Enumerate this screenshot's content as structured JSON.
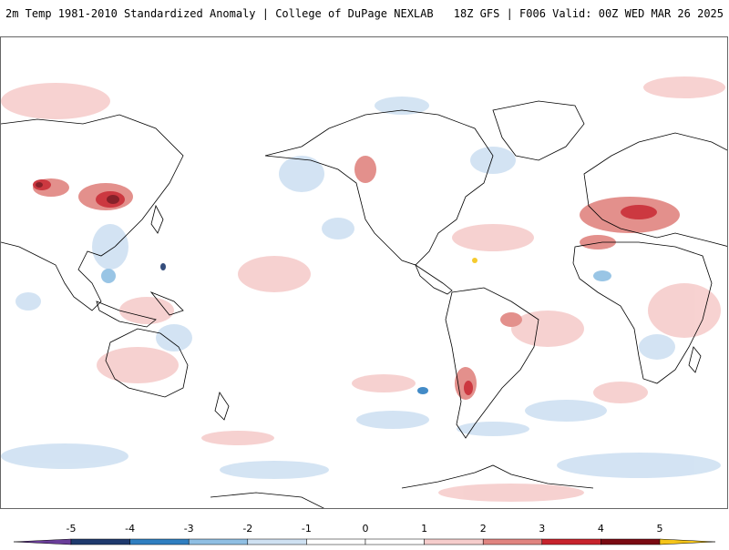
{
  "header": {
    "left_title": "2m Temp 1981-2010 Standardized Anomaly | College of DuPage NEXLAB",
    "right_title": "18Z GFS | F006 Valid: 00Z WED MAR 26 2025"
  },
  "colorbar": {
    "ticks": [
      "-5",
      "-4",
      "-3",
      "-2",
      "-1",
      "0",
      "1",
      "2",
      "3",
      "4",
      "5"
    ],
    "colors": [
      "#6a3d9a",
      "#1f3a6e",
      "#2f7fc1",
      "#8fbfe3",
      "#cfe1f2",
      "#ffffff",
      "#ffffff",
      "#f6cdcc",
      "#e08480",
      "#c7232c",
      "#7a0a12",
      "#f5c518"
    ]
  }
}
